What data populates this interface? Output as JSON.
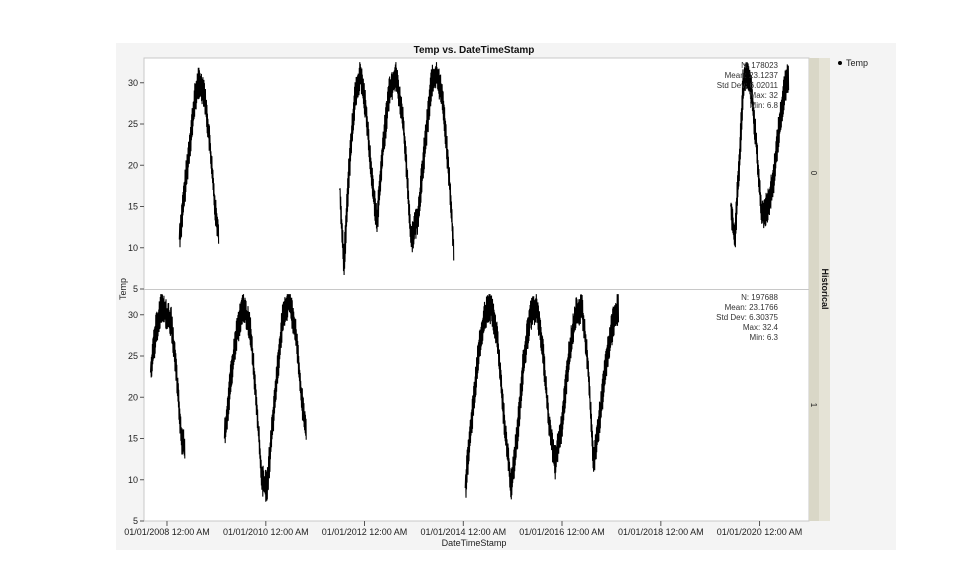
{
  "chart_data": {
    "type": "line",
    "title": "Temp vs. DateTimeStamp",
    "xlabel": "DateTimeStamp",
    "ylabel": "Temp",
    "x_ticks": [
      "01/01/2008 12:00 AM",
      "01/01/2010 12:00 AM",
      "01/01/2012 12:00 AM",
      "01/01/2014 12:00 AM",
      "01/01/2016 12:00 AM",
      "01/01/2018 12:00 AM",
      "01/01/2020 12:00 AM"
    ],
    "y_ticks": [
      5,
      10,
      15,
      20,
      25,
      30
    ],
    "ylim": [
      5,
      33
    ],
    "xlim": [
      "2007-07-15",
      "2021-01-01"
    ],
    "grid": false,
    "group_variable": "Historical",
    "legend": {
      "position": "right",
      "entries": [
        {
          "name": "Temp",
          "color": "#000000"
        }
      ]
    },
    "panels": [
      {
        "group": "0",
        "stats": [
          "N: 178023",
          "Mean: 23.1237",
          "Std Dev: 6.02011",
          "Max: 32",
          "Min: 6.8"
        ],
        "series": [
          {
            "name": "Temp",
            "points": [
              [
                "2008-04-01",
                11
              ],
              [
                "2008-05-10",
                17
              ],
              [
                "2008-06-20",
                23
              ],
              [
                "2008-07-25",
                28
              ],
              [
                "2008-08-20",
                30
              ],
              [
                "2008-09-30",
                29
              ],
              [
                "2008-11-10",
                23
              ],
              [
                "2008-12-20",
                15
              ],
              [
                "2009-01-15",
                12
              ],
              [
                "2011-07-01",
                17
              ],
              [
                "2011-08-01",
                8
              ],
              [
                "2011-09-10",
                20
              ],
              [
                "2011-10-20",
                28
              ],
              [
                "2011-12-01",
                31
              ],
              [
                "2012-01-10",
                27
              ],
              [
                "2012-02-20",
                19
              ],
              [
                "2012-04-01",
                13
              ],
              [
                "2012-05-15",
                22
              ],
              [
                "2012-07-01",
                29
              ],
              [
                "2012-08-20",
                31
              ],
              [
                "2012-10-15",
                25
              ],
              [
                "2012-12-10",
                11
              ],
              [
                "2013-02-01",
                14
              ],
              [
                "2013-03-20",
                22
              ],
              [
                "2013-05-10",
                30
              ],
              [
                "2013-06-20",
                31
              ],
              [
                "2013-08-01",
                28
              ],
              [
                "2013-09-20",
                18
              ],
              [
                "2013-10-20",
                10
              ],
              [
                "2019-06-01",
                15
              ],
              [
                "2019-07-01",
                11
              ],
              [
                "2019-08-10",
                22
              ],
              [
                "2019-09-01",
                30
              ],
              [
                "2019-10-01",
                31
              ],
              [
                "2019-11-01",
                29
              ],
              [
                "2019-12-05",
                23
              ],
              [
                "2020-01-15",
                14
              ],
              [
                "2020-03-01",
                15
              ],
              [
                "2020-04-10",
                18
              ],
              [
                "2020-05-20",
                24
              ],
              [
                "2020-07-01",
                29
              ],
              [
                "2020-08-01",
                31
              ]
            ]
          }
        ]
      },
      {
        "group": "1",
        "stats": [
          "N: 197688",
          "Mean: 23.1766",
          "Std Dev: 6.30375",
          "Max: 32.4",
          "Min: 6.3"
        ],
        "series": [
          {
            "name": "Temp",
            "points": [
              [
                "2007-09-01",
                23
              ],
              [
                "2007-10-10",
                28
              ],
              [
                "2007-11-20",
                31
              ],
              [
                "2007-12-25",
                30
              ],
              [
                "2008-02-01",
                29
              ],
              [
                "2008-03-10",
                23
              ],
              [
                "2008-04-15",
                15
              ],
              [
                "2008-05-10",
                14
              ],
              [
                "2009-03-01",
                15
              ],
              [
                "2009-04-15",
                22
              ],
              [
                "2009-06-01",
                28
              ],
              [
                "2009-07-20",
                31
              ],
              [
                "2009-09-10",
                28
              ],
              [
                "2009-10-25",
                19
              ],
              [
                "2009-12-01",
                10
              ],
              [
                "2010-01-10",
                9
              ],
              [
                "2010-02-10",
                15
              ],
              [
                "2010-03-20",
                22
              ],
              [
                "2010-05-01",
                29
              ],
              [
                "2010-06-20",
                32
              ],
              [
                "2010-08-10",
                28
              ],
              [
                "2010-09-20",
                20
              ],
              [
                "2010-10-25",
                16
              ],
              [
                "2014-01-15",
                9
              ],
              [
                "2014-03-01",
                17
              ],
              [
                "2014-04-20",
                25
              ],
              [
                "2014-06-10",
                30
              ],
              [
                "2014-07-25",
                31
              ],
              [
                "2014-09-10",
                27
              ],
              [
                "2014-10-25",
                18
              ],
              [
                "2014-12-20",
                9
              ],
              [
                "2015-02-01",
                15
              ],
              [
                "2015-03-20",
                24
              ],
              [
                "2015-05-10",
                30
              ],
              [
                "2015-06-25",
                31
              ],
              [
                "2015-08-10",
                26
              ],
              [
                "2015-09-25",
                17
              ],
              [
                "2015-11-10",
                12
              ],
              [
                "2016-01-01",
                17
              ],
              [
                "2016-02-20",
                25
              ],
              [
                "2016-04-10",
                30
              ],
              [
                "2016-05-25",
                31
              ],
              [
                "2016-07-10",
                24
              ],
              [
                "2016-08-20",
                12
              ],
              [
                "2016-10-01",
                17
              ],
              [
                "2016-11-20",
                24
              ],
              [
                "2017-01-10",
                29
              ],
              [
                "2017-02-20",
                31
              ]
            ]
          }
        ]
      }
    ]
  }
}
